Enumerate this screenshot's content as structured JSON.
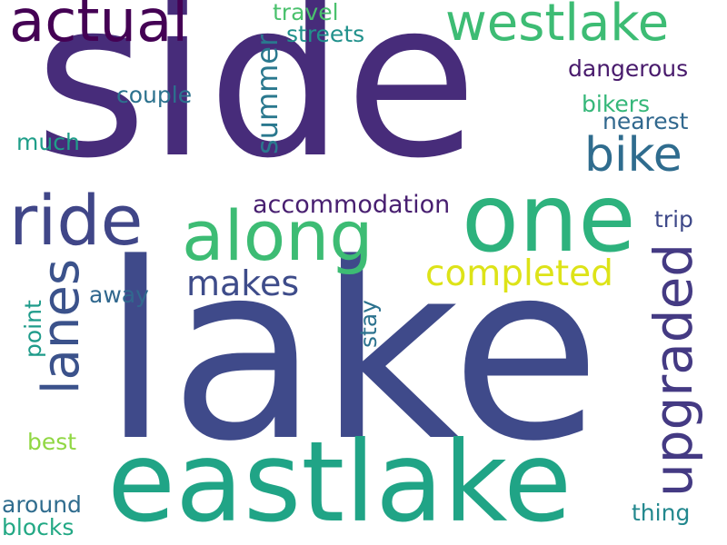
{
  "words": [
    {
      "text": "side",
      "color": "#472c7a",
      "orientation": "horizontal"
    },
    {
      "text": "lake",
      "color": "#3f4a8a",
      "orientation": "horizontal"
    },
    {
      "text": "eastlake",
      "color": "#20a486",
      "orientation": "horizontal"
    },
    {
      "text": "one",
      "color": "#2db27d",
      "orientation": "horizontal"
    },
    {
      "text": "along",
      "color": "#3dbc74",
      "orientation": "horizontal"
    },
    {
      "text": "ride",
      "color": "#404688",
      "orientation": "horizontal"
    },
    {
      "text": "actual",
      "color": "#440154",
      "orientation": "horizontal"
    },
    {
      "text": "westlake",
      "color": "#3dbc74",
      "orientation": "horizontal"
    },
    {
      "text": "bike",
      "color": "#2f6c8e",
      "orientation": "horizontal"
    },
    {
      "text": "upgraded",
      "color": "#443a83",
      "orientation": "vertical"
    },
    {
      "text": "lanes",
      "color": "#3b528b",
      "orientation": "vertical"
    },
    {
      "text": "completed",
      "color": "#dde318",
      "orientation": "horizontal"
    },
    {
      "text": "makes",
      "color": "#3e4c8a",
      "orientation": "horizontal"
    },
    {
      "text": "summer",
      "color": "#2a788e",
      "orientation": "vertical"
    },
    {
      "text": "accommodation",
      "color": "#481f70",
      "orientation": "horizontal"
    },
    {
      "text": "dangerous",
      "color": "#481a6c",
      "orientation": "horizontal"
    },
    {
      "text": "travel",
      "color": "#4ac16d",
      "orientation": "horizontal"
    },
    {
      "text": "streets",
      "color": "#21918c",
      "orientation": "horizontal"
    },
    {
      "text": "couple",
      "color": "#2c728e",
      "orientation": "horizontal"
    },
    {
      "text": "bikers",
      "color": "#35b779",
      "orientation": "horizontal"
    },
    {
      "text": "nearest",
      "color": "#31688e",
      "orientation": "horizontal"
    },
    {
      "text": "much",
      "color": "#1f9e89",
      "orientation": "horizontal"
    },
    {
      "text": "trip",
      "color": "#3e4989",
      "orientation": "horizontal"
    },
    {
      "text": "away",
      "color": "#31688e",
      "orientation": "horizontal"
    },
    {
      "text": "point",
      "color": "#1e9b8a",
      "orientation": "vertical"
    },
    {
      "text": "stay",
      "color": "#2c728e",
      "orientation": "vertical"
    },
    {
      "text": "best",
      "color": "#90d743",
      "orientation": "horizontal"
    },
    {
      "text": "around",
      "color": "#2f6c8e",
      "orientation": "horizontal"
    },
    {
      "text": "blocks",
      "color": "#22a884",
      "orientation": "horizontal"
    },
    {
      "text": "thing",
      "color": "#23888e",
      "orientation": "horizontal"
    }
  ]
}
